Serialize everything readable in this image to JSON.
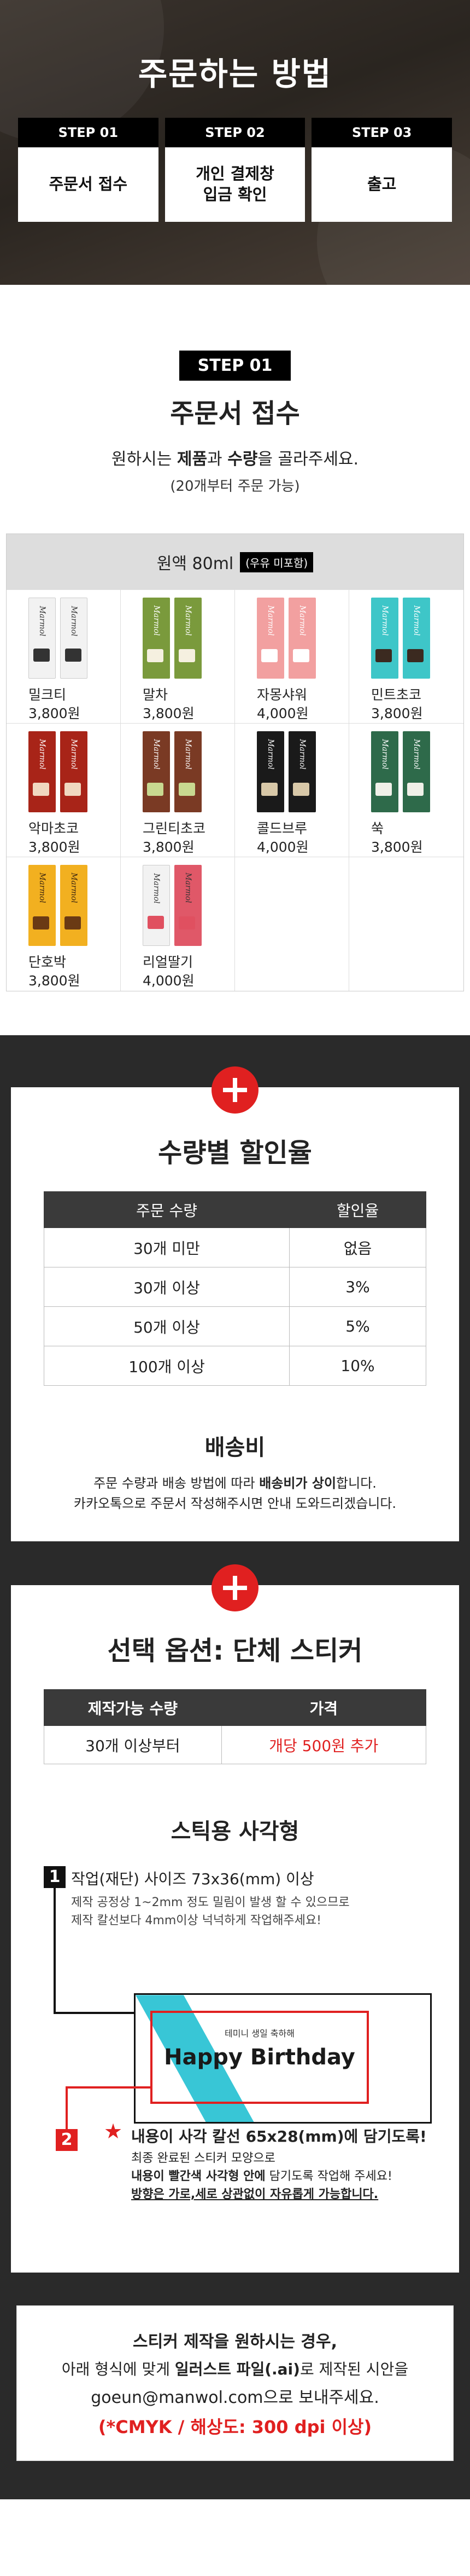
{
  "hero": {
    "title": "주문하는 방법",
    "steps": [
      {
        "head": "STEP 01",
        "body": "주문서 접수"
      },
      {
        "head": "STEP 02",
        "body": "개인 결제창\n입금 확인"
      },
      {
        "head": "STEP 03",
        "body": "출고"
      }
    ]
  },
  "step1": {
    "badge": "STEP 01",
    "title": "주문서 접수",
    "desc_pre": "원하시는 ",
    "desc_b1": "제품",
    "desc_mid": "과 ",
    "desc_b2": "수량",
    "desc_post": "을 골라주세요.",
    "sub": "(20개부터 주문 가능)"
  },
  "menu": {
    "header": "원액 80ml",
    "header_tag": "(우유 미포함)",
    "brand": "Marmol",
    "items": [
      {
        "name": "밀크티",
        "price": "3,800원",
        "color": "#f2f2f2",
        "label": "#333333",
        "text": "#333333"
      },
      {
        "name": "말차",
        "price": "3,800원",
        "color": "#7a9a3c",
        "label": "#f5f0e0",
        "text": "#ffffff"
      },
      {
        "name": "자몽샤워",
        "price": "4,000원",
        "color": "#f2a0a0",
        "label": "#ffffff",
        "text": "#ffffff"
      },
      {
        "name": "민트초코",
        "price": "3,800원",
        "color": "#3ec6c8",
        "label": "#3b2a20",
        "text": "#ffffff"
      },
      {
        "name": "악마초코",
        "price": "3,800원",
        "color": "#a82418",
        "label": "#f0d8c0",
        "text": "#ffffff"
      },
      {
        "name": "그린티초코",
        "price": "3,800원",
        "color": "#7a3a24",
        "label": "#c8d890",
        "text": "#ffffff"
      },
      {
        "name": "콜드브루",
        "price": "4,000원",
        "color": "#1a1a1a",
        "label": "#d8c8a8",
        "text": "#ffffff"
      },
      {
        "name": "쑥",
        "price": "3,800원",
        "color": "#2e6a4a",
        "label": "#f0f0e8",
        "text": "#ffffff"
      },
      {
        "name": "단호박",
        "price": "3,800원",
        "color": "#f2b020",
        "label": "#6a3a14",
        "text": "#3a2410"
      },
      {
        "name": "리얼딸기",
        "price": "4,000원",
        "color": "#f2f2f2",
        "label": "#e05060",
        "text": "#333333",
        "color2": "#e05868"
      }
    ]
  },
  "discount": {
    "title": "수량별 할인율",
    "headers": [
      "주문 수량",
      "할인율"
    ],
    "rows": [
      [
        "30개 미만",
        "없음"
      ],
      [
        "30개 이상",
        "3%"
      ],
      [
        "50개 이상",
        "5%"
      ],
      [
        "100개 이상",
        "10%"
      ]
    ]
  },
  "shipping": {
    "title": "배송비",
    "line1_pre": "주문 수량과 배송 방법에 따라 ",
    "line1_b": "배송비가 상이",
    "line1_post": "합니다.",
    "line2": "카카오톡으로 주문서 작성해주시면 안내 도와드리겠습니다."
  },
  "option": {
    "title": "선택 옵션: 단체 스티커",
    "headers": [
      "제작가능 수량",
      "가격"
    ],
    "row": [
      "30개 이상부터",
      "개당 500원 추가"
    ]
  },
  "sticker": {
    "title": "스틱용 사각형",
    "num1": "1",
    "t1": "작업(재단) 사이즈 73x36(mm) 이상",
    "t1s_1": "제작 공정상 1~2mm 정도 밀림이 발생 할 수 있으므로",
    "t1s_2": "제작 칼선보다 4mm이상 넉넉하게 작업해주세요!",
    "sample_small": "테미니 생일 축하해",
    "sample_big": "Happy Birthday",
    "num2": "2",
    "star": "★",
    "t2": "내용이 사각 칼선 65x28(mm)에 담기도록!",
    "t2s_1": "최종 완료된 스티커 모양으로",
    "t2s_2b": "내용이 빨간색 사각형 안에",
    "t2s_2": " 담기도록 작업해 주세요!",
    "t2s_3": "방향은 가로,세로 상관없이 자유롭게 가능합니다."
  },
  "final": {
    "l1": "스티커 제작을 원하시는 경우,",
    "l2_pre": "아래 형식에 맞게 ",
    "l2_b": "일러스트 파일(.ai)",
    "l2_post": "로 제작된 시안을",
    "l3": "goeun@manwol.com으로 보내주세요.",
    "l4": "(*CMYK / 해상도: 300 dpi 이상)"
  }
}
